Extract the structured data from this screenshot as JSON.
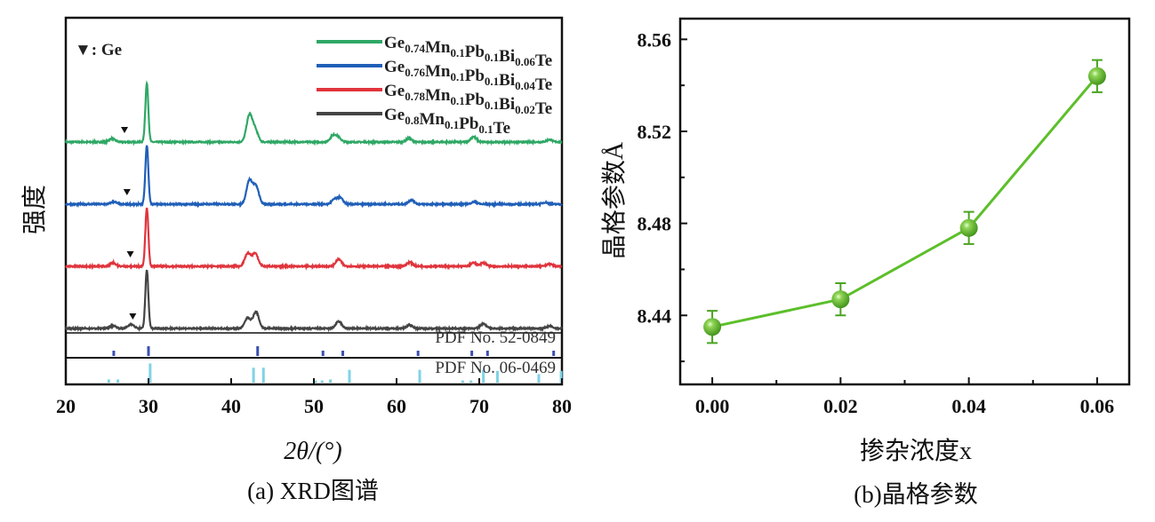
{
  "chart_data": [
    {
      "type": "line",
      "panel_caption": "(a) XRD图谱",
      "xlabel": "2θ/(°)",
      "ylabel": "强度",
      "xlim": [
        20,
        80
      ],
      "xticks": [
        "20",
        "30",
        "40",
        "50",
        "60",
        "70",
        "80"
      ],
      "yticks": [],
      "marker_legend": "▼: Ge",
      "legend_placement": "top-right",
      "series": [
        {
          "parts": [
            [
              "Ge",
              "0.74"
            ],
            [
              "Mn",
              "0.1"
            ],
            [
              "Pb",
              "0.1"
            ],
            [
              "Bi",
              "0.06"
            ],
            [
              "Te",
              ""
            ]
          ],
          "color": "#2fa865",
          "offset": 3,
          "ge_marker": 27.1,
          "peaks": [
            [
              25.6,
              6
            ],
            [
              29.8,
              100
            ],
            [
              42.2,
              45
            ],
            [
              42.9,
              20
            ],
            [
              52.3,
              10
            ],
            [
              52.9,
              8
            ],
            [
              61.5,
              6
            ],
            [
              69.3,
              9
            ],
            [
              78.5,
              4
            ]
          ]
        },
        {
          "parts": [
            [
              "Ge",
              "0.76"
            ],
            [
              "Mn",
              "0.1"
            ],
            [
              "Pb",
              "0.1"
            ],
            [
              "Bi",
              "0.04"
            ],
            [
              "Te",
              ""
            ]
          ],
          "color": "#1f5fb8",
          "offset": 2,
          "ge_marker": 27.4,
          "peaks": [
            [
              25.8,
              4
            ],
            [
              29.8,
              100
            ],
            [
              42.2,
              40
            ],
            [
              43.0,
              30
            ],
            [
              52.5,
              8
            ],
            [
              53.2,
              10
            ],
            [
              61.8,
              7
            ],
            [
              69.4,
              4
            ],
            [
              78.0,
              3
            ]
          ]
        },
        {
          "parts": [
            [
              "Ge",
              "0.78"
            ],
            [
              "Mn",
              "0.1"
            ],
            [
              "Pb",
              "0.1"
            ],
            [
              "Bi",
              "0.02"
            ],
            [
              "Te",
              ""
            ]
          ],
          "color": "#e0343c",
          "offset": 1,
          "ge_marker": 27.8,
          "peaks": [
            [
              25.7,
              6
            ],
            [
              29.8,
              100
            ],
            [
              42.0,
              22
            ],
            [
              42.9,
              22
            ],
            [
              53.0,
              12
            ],
            [
              61.6,
              7
            ],
            [
              69.3,
              6
            ],
            [
              70.5,
              6
            ],
            [
              78.5,
              4
            ]
          ]
        },
        {
          "parts": [
            [
              "Ge",
              "0.8"
            ],
            [
              "Mn",
              "0.1"
            ],
            [
              "Pb",
              "0.1"
            ],
            [
              "Te",
              ""
            ]
          ],
          "color": "#444444",
          "offset": 0,
          "ge_marker": 28.1,
          "peaks": [
            [
              25.7,
              5
            ],
            [
              27.9,
              7
            ],
            [
              29.8,
              100
            ],
            [
              42.0,
              18
            ],
            [
              43.0,
              28
            ],
            [
              53.0,
              12
            ],
            [
              61.6,
              6
            ],
            [
              70.5,
              8
            ],
            [
              78.5,
              4
            ]
          ]
        }
      ],
      "references": [
        {
          "label": "PDF No. 52-0849",
          "color": "#3a4fb0",
          "sticks": [
            [
              25.8,
              30
            ],
            [
              30.0,
              55
            ],
            [
              43.2,
              55
            ],
            [
              51.1,
              30
            ],
            [
              53.5,
              30
            ],
            [
              62.6,
              30
            ],
            [
              69.1,
              30
            ],
            [
              71.0,
              30
            ],
            [
              79.0,
              30
            ]
          ]
        },
        {
          "label": "PDF No. 06-0469",
          "color": "#7fd3e6",
          "sticks": [
            [
              25.2,
              15
            ],
            [
              26.3,
              15
            ],
            [
              30.2,
              90
            ],
            [
              42.7,
              70
            ],
            [
              43.9,
              70
            ],
            [
              50.2,
              10
            ],
            [
              51.0,
              10
            ],
            [
              52.0,
              15
            ],
            [
              54.3,
              60
            ],
            [
              62.8,
              60
            ],
            [
              68.0,
              10
            ],
            [
              69.0,
              10
            ],
            [
              70.5,
              60
            ],
            [
              72.2,
              55
            ],
            [
              77.2,
              40
            ],
            [
              79.9,
              55
            ]
          ]
        }
      ]
    },
    {
      "type": "line",
      "panel_caption": "(b)晶格参数",
      "xlabel": "掺杂浓度x",
      "ylabel": "晶格参数Å",
      "xlim": [
        -0.005,
        0.065
      ],
      "ylim": [
        8.41,
        8.569
      ],
      "xticks": [
        "0.00",
        "0.02",
        "0.04",
        "0.06"
      ],
      "yticks": [
        "8.44",
        "8.48",
        "8.52",
        "8.56"
      ],
      "color": "#5cbf2a",
      "x": [
        0.0,
        0.02,
        0.04,
        0.06
      ],
      "y": [
        8.435,
        8.447,
        8.478,
        8.544
      ],
      "yerr": [
        0.007,
        0.007,
        0.007,
        0.007
      ]
    }
  ]
}
